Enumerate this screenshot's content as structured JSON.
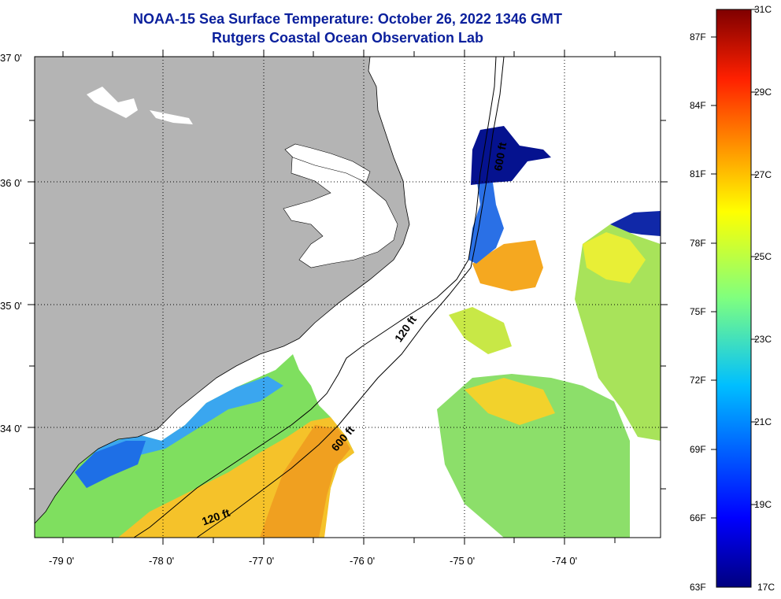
{
  "title": {
    "line1": "NOAA-15 Sea Surface Temperature:  October 26, 2022 1346 GMT",
    "line2": "Rutgers Coastal Ocean Observation Lab"
  },
  "map": {
    "lon_labels": [
      "-79 0'",
      "-78 0'",
      "-77 0'",
      "-76 0'",
      "-75 0'",
      "-74 0'"
    ],
    "lat_labels": [
      "37 0'",
      "36 0'",
      "35 0'",
      "34 0'"
    ],
    "contours": [
      "120 ft",
      "120 ft",
      "600 ft",
      "600 ft"
    ],
    "colors": {
      "land": "#b4b4b4",
      "background": "#ffffff",
      "title": "#0a1f9c"
    }
  },
  "colorbar": {
    "fahrenheit": [
      "87F",
      "84F",
      "81F",
      "78F",
      "75F",
      "72F",
      "69F",
      "66F",
      "63F"
    ],
    "celsius": [
      "31C",
      "29C",
      "27C",
      "25C",
      "23C",
      "21C",
      "19C",
      "17C"
    ],
    "range_c": [
      17,
      31
    ],
    "colormap": "jet"
  }
}
